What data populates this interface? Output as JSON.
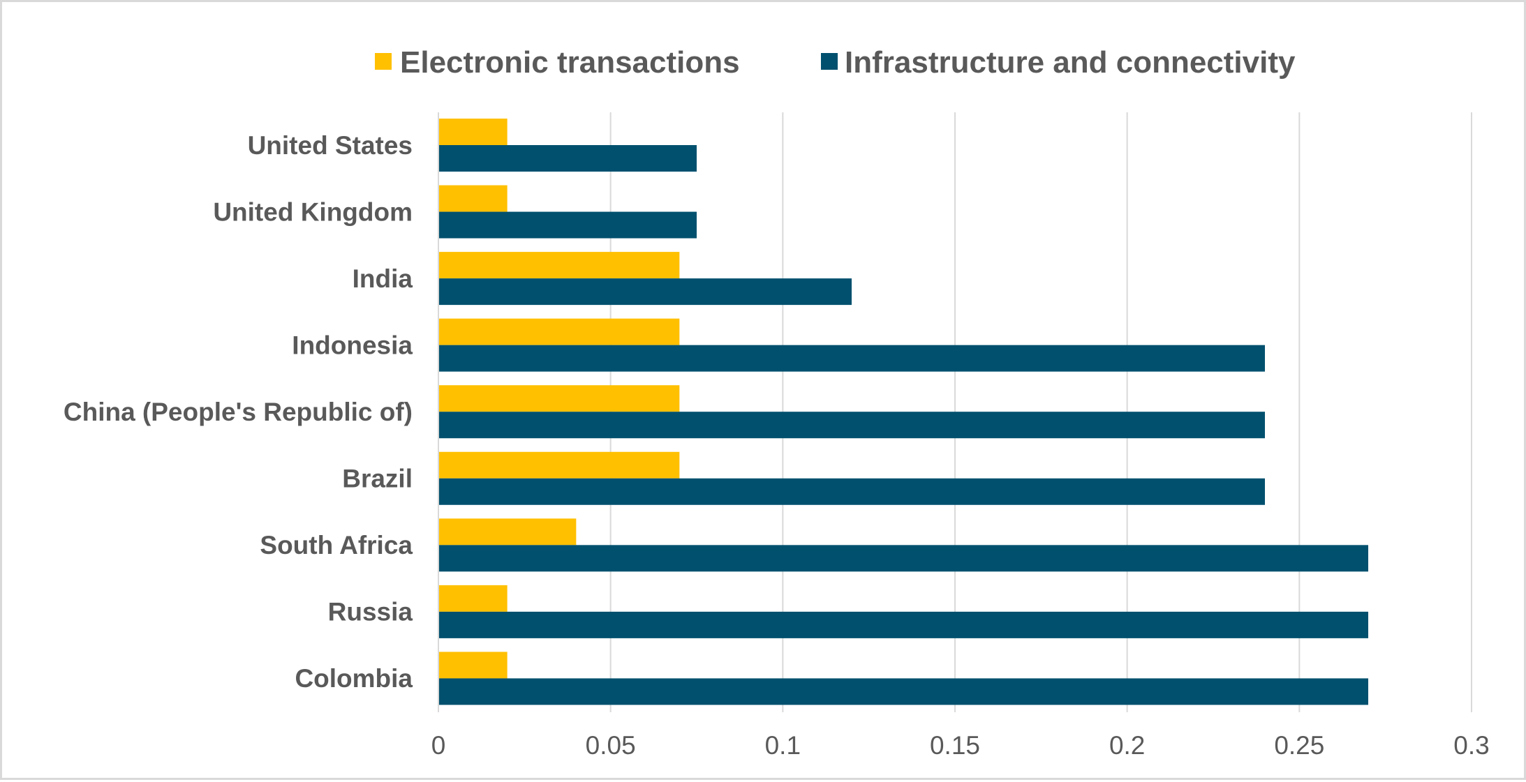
{
  "chart_data": {
    "type": "bar",
    "orientation": "horizontal",
    "title": "",
    "xlabel": "",
    "ylabel": "",
    "xlim": [
      0,
      0.3
    ],
    "ticks": [
      "0",
      "0.05",
      "0.1",
      "0.15",
      "0.2",
      "0.25",
      "0.3"
    ],
    "tick_values": [
      0,
      0.05,
      0.1,
      0.15,
      0.2,
      0.25,
      0.3
    ],
    "grid": true,
    "legend_position": "top",
    "categories": [
      "United States",
      "United Kingdom",
      "India",
      "Indonesia",
      "China (People's Republic of)",
      "Brazil",
      "South Africa",
      "Russia",
      "Colombia"
    ],
    "series": [
      {
        "name": "Electronic transactions",
        "color": "#FFC000",
        "values": [
          0.02,
          0.02,
          0.07,
          0.07,
          0.07,
          0.07,
          0.04,
          0.02,
          0.02
        ]
      },
      {
        "name": "Infrastructure and connectivity",
        "color": "#00506E",
        "values": [
          0.075,
          0.075,
          0.12,
          0.24,
          0.24,
          0.24,
          0.27,
          0.27,
          0.27
        ]
      }
    ]
  }
}
